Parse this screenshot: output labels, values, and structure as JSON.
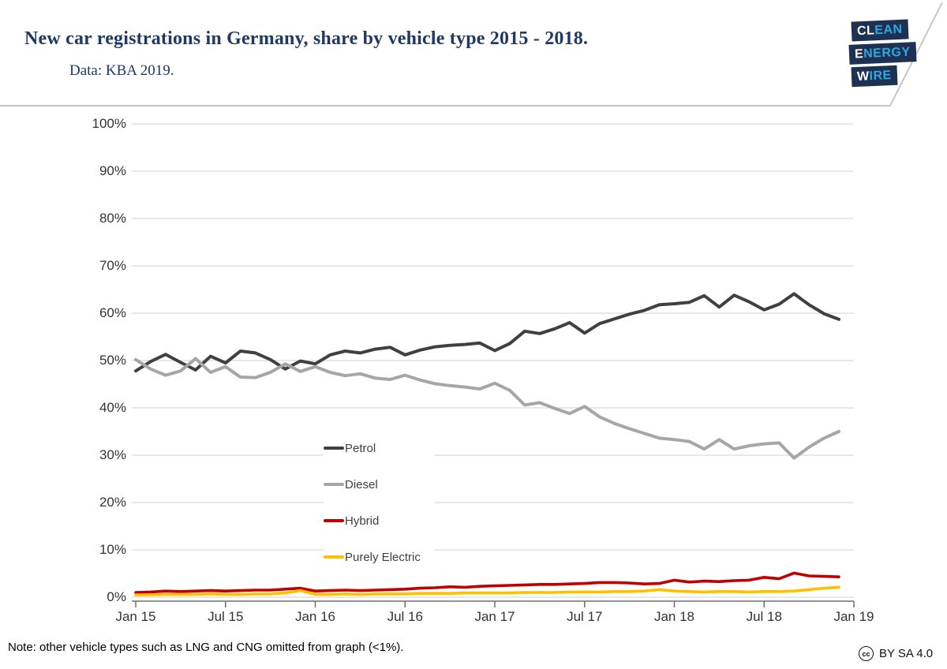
{
  "header": {
    "title": "New car registrations in Germany, share by vehicle type 2015 - 2018.",
    "subtitle": "Data: KBA 2019."
  },
  "logo": {
    "lines": [
      {
        "lead": "CL",
        "rest": "EAN"
      },
      {
        "lead": "E",
        "rest": "NERGY"
      },
      {
        "lead": "W",
        "rest": "IRE"
      }
    ],
    "navy": "#1E3152",
    "accent": "#2EA8E0"
  },
  "note": "Note: other vehicle types such as LNG and CNG omitted from graph (<1%).",
  "license": {
    "icon_text": "cc",
    "label": "BY SA 4.0"
  },
  "colors": {
    "gridline": "#D9D9D9",
    "axis": "#6E6E6E",
    "tick_label": "#333333",
    "title": "#1F3864",
    "header_border": "#C6C6C6"
  },
  "chart_data": {
    "type": "line",
    "title": "New car registrations in Germany, share by vehicle type 2015 - 2018.",
    "xlabel": "",
    "ylabel": "",
    "ylim": [
      0,
      100
    ],
    "grid": true,
    "legend_position": "center-left",
    "x_start": "Jan 2015",
    "x_end": "Dec 2018",
    "points_per_series": 48,
    "y_ticks": [
      {
        "label": "0%",
        "value": 0
      },
      {
        "label": "10%",
        "value": 10
      },
      {
        "label": "20%",
        "value": 20
      },
      {
        "label": "30%",
        "value": 30
      },
      {
        "label": "40%",
        "value": 40
      },
      {
        "label": "50%",
        "value": 50
      },
      {
        "label": "60%",
        "value": 60
      },
      {
        "label": "70%",
        "value": 70
      },
      {
        "label": "80%",
        "value": 80
      },
      {
        "label": "90%",
        "value": 90
      },
      {
        "label": "100%",
        "value": 100
      }
    ],
    "x_ticks": [
      {
        "label": "Jan 15",
        "month": 0
      },
      {
        "label": "Jul 15",
        "month": 6
      },
      {
        "label": "Jan 16",
        "month": 12
      },
      {
        "label": "Jul 16",
        "month": 18
      },
      {
        "label": "Jan 17",
        "month": 24
      },
      {
        "label": "Jul 17",
        "month": 30
      },
      {
        "label": "Jan 18",
        "month": 36
      },
      {
        "label": "Jul 18",
        "month": 42
      },
      {
        "label": "Jan 19",
        "month": 48
      }
    ],
    "series": [
      {
        "name": "Petrol",
        "color": "#404040",
        "values": [
          47.8,
          49.8,
          51.3,
          49.6,
          48.0,
          50.9,
          49.5,
          52.0,
          51.6,
          50.2,
          48.2,
          49.9,
          49.3,
          51.2,
          52.0,
          51.6,
          52.4,
          52.8,
          51.2,
          52.2,
          52.9,
          53.2,
          53.4,
          53.7,
          52.1,
          53.6,
          56.2,
          55.7,
          56.7,
          58.0,
          55.8,
          57.8,
          58.8,
          59.8,
          60.6,
          61.8,
          62.0,
          62.3,
          63.7,
          61.3,
          63.8,
          62.4,
          60.7,
          61.9,
          64.1,
          61.8,
          59.9,
          58.7
        ]
      },
      {
        "name": "Diesel",
        "color": "#A6A6A6",
        "values": [
          50.2,
          48.2,
          46.9,
          47.8,
          50.4,
          47.5,
          48.7,
          46.5,
          46.4,
          47.5,
          49.3,
          47.7,
          48.7,
          47.5,
          46.8,
          47.2,
          46.3,
          46.0,
          46.9,
          45.9,
          45.1,
          44.7,
          44.4,
          44.0,
          45.2,
          43.7,
          40.6,
          41.1,
          39.9,
          38.8,
          40.3,
          38.1,
          36.7,
          35.6,
          34.6,
          33.6,
          33.3,
          32.9,
          31.3,
          33.3,
          31.3,
          32.0,
          32.4,
          32.6,
          29.4,
          31.7,
          33.6,
          35.0
        ]
      },
      {
        "name": "Hybrid",
        "color": "#C00000",
        "values": [
          1.0,
          1.1,
          1.3,
          1.2,
          1.3,
          1.4,
          1.3,
          1.4,
          1.5,
          1.5,
          1.7,
          1.9,
          1.3,
          1.4,
          1.5,
          1.4,
          1.5,
          1.6,
          1.7,
          1.9,
          2.0,
          2.2,
          2.1,
          2.3,
          2.4,
          2.5,
          2.6,
          2.7,
          2.7,
          2.8,
          2.9,
          3.1,
          3.1,
          3.0,
          2.8,
          2.9,
          3.6,
          3.2,
          3.4,
          3.3,
          3.5,
          3.6,
          4.2,
          3.9,
          5.1,
          4.5,
          4.4,
          4.3
        ]
      },
      {
        "name": "Purely Electric",
        "color": "#FFC000",
        "values": [
          0.5,
          0.5,
          0.6,
          0.6,
          0.6,
          0.7,
          0.6,
          0.6,
          0.7,
          0.7,
          0.9,
          1.4,
          0.6,
          0.6,
          0.7,
          0.6,
          0.7,
          0.7,
          0.7,
          0.8,
          0.8,
          0.8,
          0.9,
          0.9,
          0.9,
          0.9,
          1.0,
          1.0,
          1.0,
          1.1,
          1.1,
          1.1,
          1.2,
          1.2,
          1.3,
          1.6,
          1.3,
          1.2,
          1.1,
          1.2,
          1.2,
          1.1,
          1.2,
          1.2,
          1.3,
          1.6,
          1.9,
          2.1
        ]
      }
    ]
  }
}
